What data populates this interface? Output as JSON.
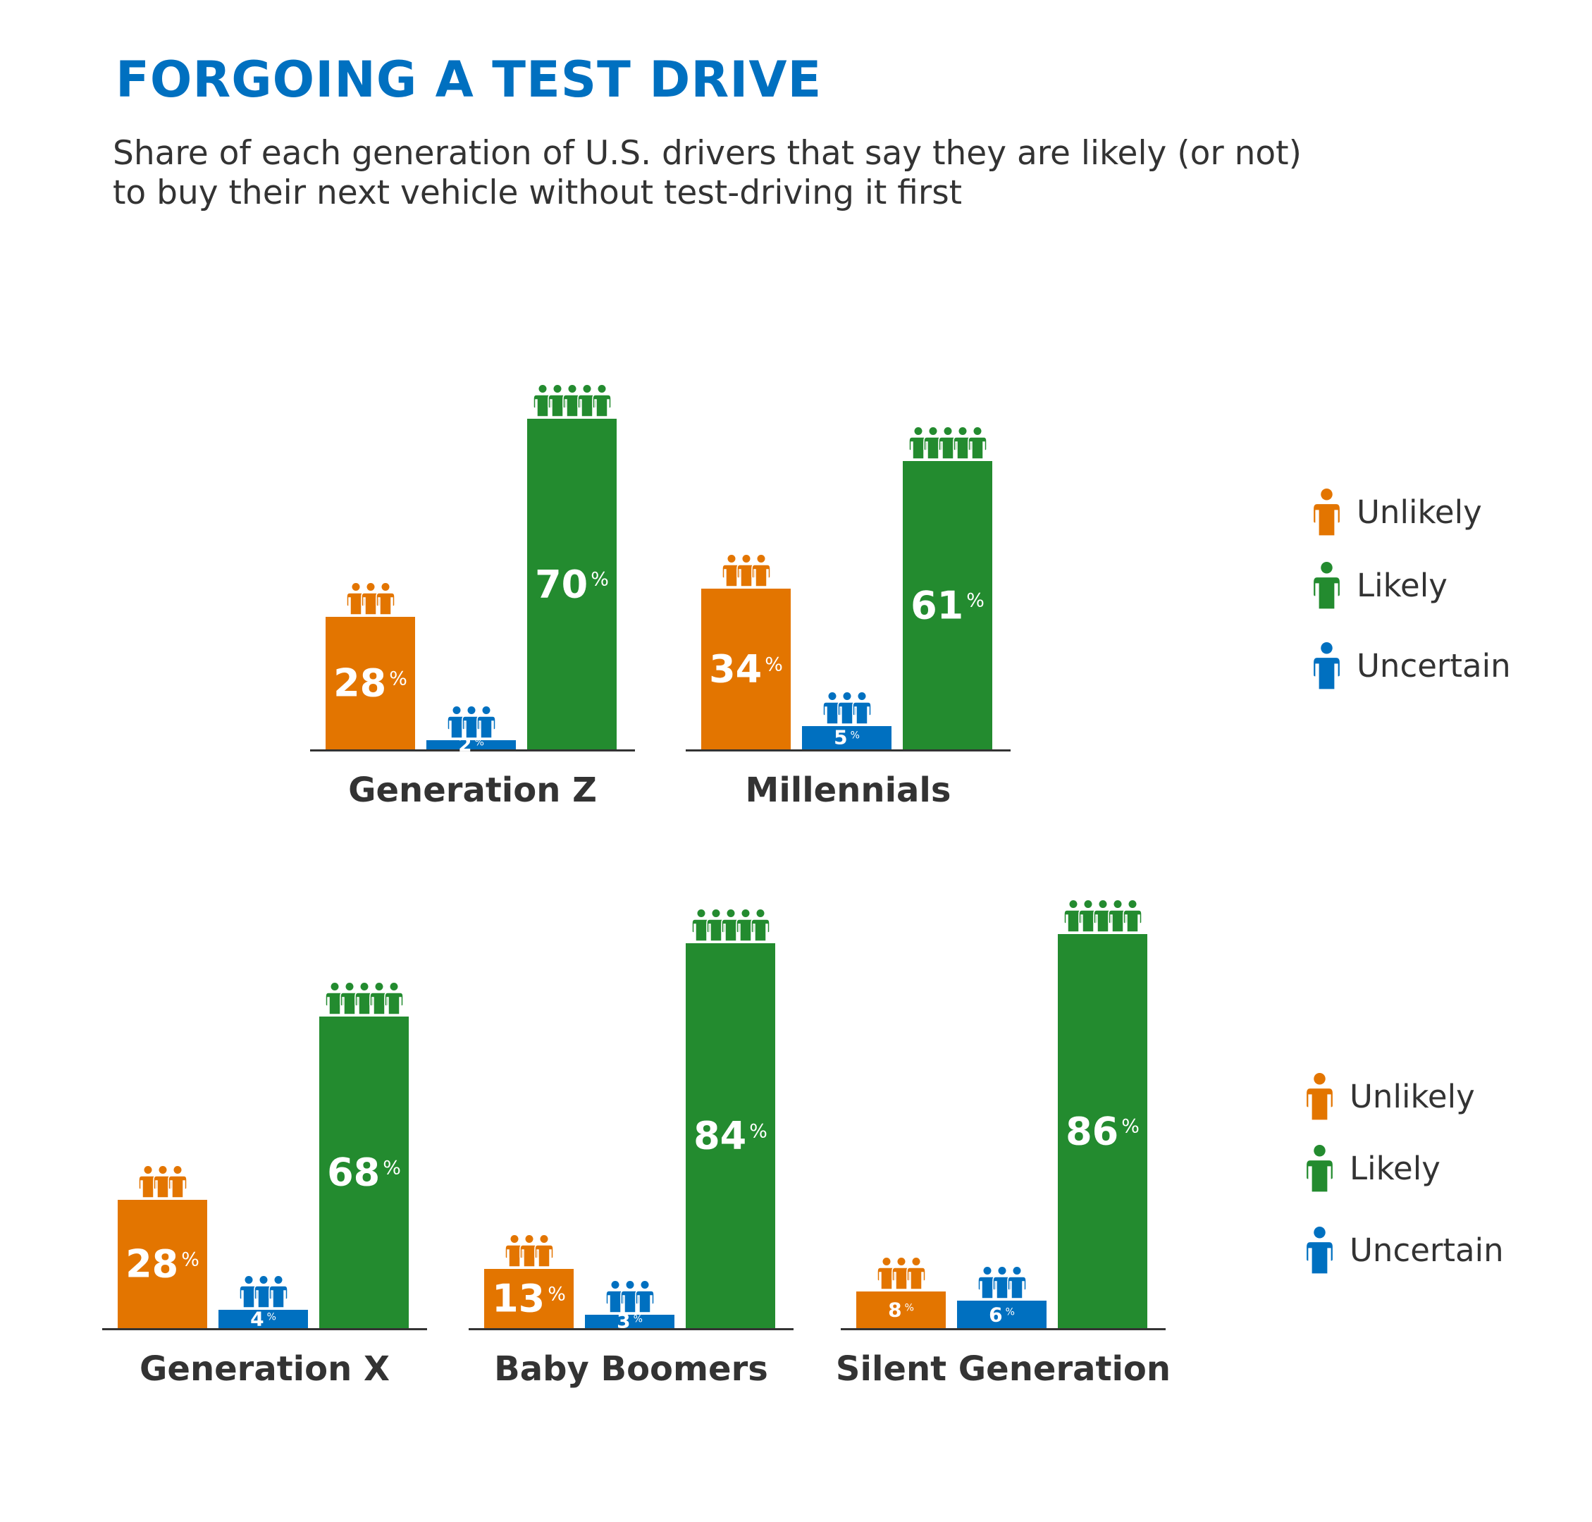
{
  "title": "FORGOING A TEST DRIVE",
  "subtitle_line1": "Share of each generation of U.S. drivers that say they are likely (or not)",
  "subtitle_line2": "to buy their next vehicle without test-driving it first",
  "colors": {
    "Unlikely": "#e37500",
    "Likely": "#238b2f",
    "Uncertain": "#0070c0",
    "title": "#0070c0",
    "text": "#333333"
  },
  "legend": [
    "Unlikely",
    "Likely",
    "Uncertain"
  ],
  "chart_data": {
    "type": "bar",
    "value_unit": "%",
    "series_order": [
      "Unlikely",
      "Uncertain",
      "Likely"
    ],
    "icon": "person-group-icon",
    "groups": [
      {
        "name": "Generation Z",
        "values": {
          "Unlikely": 28,
          "Uncertain": 2,
          "Likely": 70
        }
      },
      {
        "name": "Millennials",
        "values": {
          "Unlikely": 34,
          "Uncertain": 5,
          "Likely": 61
        }
      },
      {
        "name": "Generation X",
        "values": {
          "Unlikely": 28,
          "Uncertain": 4,
          "Likely": 68
        }
      },
      {
        "name": "Baby Boomers",
        "values": {
          "Unlikely": 13,
          "Uncertain": 3,
          "Likely": 84
        }
      },
      {
        "name": "Silent Generation",
        "values": {
          "Unlikely": 8,
          "Uncertain": 6,
          "Likely": 86
        }
      }
    ]
  }
}
